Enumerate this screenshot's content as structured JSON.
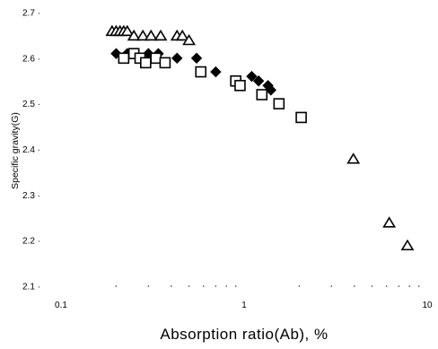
{
  "chart_data": {
    "type": "scatter",
    "title": "",
    "xlabel": "Absorption ratio(Ab), %",
    "ylabel": "Specific gravity(G)",
    "x_scale": "log",
    "xlim": [
      0.1,
      10
    ],
    "ylim": [
      2.1,
      2.7
    ],
    "x_tick_labels": [
      "0.1",
      "1",
      "10"
    ],
    "y_tick_labels": [
      "2.1",
      "2.2",
      "2.3",
      "2.4",
      "2.5",
      "2.6",
      "2.7"
    ],
    "grid": false,
    "legend": "none",
    "series": [
      {
        "marker": "triangle",
        "points": [
          {
            "x": 0.19,
            "y": 2.66
          },
          {
            "x": 0.2,
            "y": 2.66
          },
          {
            "x": 0.21,
            "y": 2.66
          },
          {
            "x": 0.22,
            "y": 2.66
          },
          {
            "x": 0.23,
            "y": 2.66
          },
          {
            "x": 0.25,
            "y": 2.65
          },
          {
            "x": 0.28,
            "y": 2.65
          },
          {
            "x": 0.31,
            "y": 2.65
          },
          {
            "x": 0.35,
            "y": 2.65
          },
          {
            "x": 0.43,
            "y": 2.65
          },
          {
            "x": 0.46,
            "y": 2.65
          },
          {
            "x": 0.5,
            "y": 2.64
          },
          {
            "x": 3.95,
            "y": 2.38
          },
          {
            "x": 6.2,
            "y": 2.24
          },
          {
            "x": 7.8,
            "y": 2.19
          }
        ]
      },
      {
        "marker": "diamond",
        "points": [
          {
            "x": 0.2,
            "y": 2.61
          },
          {
            "x": 0.23,
            "y": 2.61
          },
          {
            "x": 0.25,
            "y": 2.61
          },
          {
            "x": 0.3,
            "y": 2.61
          },
          {
            "x": 0.34,
            "y": 2.61
          },
          {
            "x": 0.43,
            "y": 2.6
          },
          {
            "x": 0.55,
            "y": 2.6
          },
          {
            "x": 0.7,
            "y": 2.57
          },
          {
            "x": 1.1,
            "y": 2.56
          },
          {
            "x": 1.2,
            "y": 2.55
          },
          {
            "x": 1.35,
            "y": 2.54
          },
          {
            "x": 1.4,
            "y": 2.53
          }
        ]
      },
      {
        "marker": "square",
        "points": [
          {
            "x": 0.22,
            "y": 2.6
          },
          {
            "x": 0.25,
            "y": 2.61
          },
          {
            "x": 0.27,
            "y": 2.6
          },
          {
            "x": 0.29,
            "y": 2.59
          },
          {
            "x": 0.33,
            "y": 2.6
          },
          {
            "x": 0.37,
            "y": 2.59
          },
          {
            "x": 0.58,
            "y": 2.57
          },
          {
            "x": 0.9,
            "y": 2.55
          },
          {
            "x": 0.95,
            "y": 2.54
          },
          {
            "x": 1.25,
            "y": 2.52
          },
          {
            "x": 1.55,
            "y": 2.5
          },
          {
            "x": 2.05,
            "y": 2.47
          }
        ]
      }
    ]
  }
}
